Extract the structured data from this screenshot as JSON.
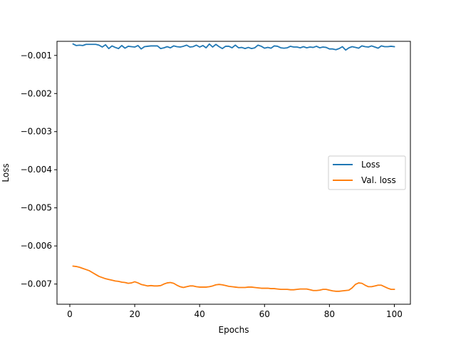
{
  "chart_data": {
    "type": "line",
    "title": "",
    "xlabel": "Epochs",
    "ylabel": "Loss",
    "xlim": [
      -3.95,
      104.95
    ],
    "ylim": [
      -0.00753,
      -0.00063
    ],
    "xticks": [
      0,
      20,
      40,
      60,
      80,
      100
    ],
    "xtick_labels": [
      "0",
      "20",
      "40",
      "60",
      "80",
      "100"
    ],
    "yticks": [
      -0.001,
      -0.002,
      -0.003,
      -0.004,
      -0.005,
      -0.006,
      -0.007
    ],
    "ytick_labels": [
      "−0.001",
      "−0.002",
      "−0.003",
      "−0.004",
      "−0.005",
      "−0.006",
      "−0.007"
    ],
    "grid": false,
    "legend_position": "center-right",
    "x": [
      1,
      2,
      3,
      4,
      5,
      6,
      7,
      8,
      9,
      10,
      11,
      12,
      13,
      14,
      15,
      16,
      17,
      18,
      19,
      20,
      21,
      22,
      23,
      24,
      25,
      26,
      27,
      28,
      29,
      30,
      31,
      32,
      33,
      34,
      35,
      36,
      37,
      38,
      39,
      40,
      41,
      42,
      43,
      44,
      45,
      46,
      47,
      48,
      49,
      50,
      51,
      52,
      53,
      54,
      55,
      56,
      57,
      58,
      59,
      60,
      61,
      62,
      63,
      64,
      65,
      66,
      67,
      68,
      69,
      70,
      71,
      72,
      73,
      74,
      75,
      76,
      77,
      78,
      79,
      80,
      81,
      82,
      83,
      84,
      85,
      86,
      87,
      88,
      89,
      90,
      91,
      92,
      93,
      94,
      95,
      96,
      97,
      98,
      99,
      100
    ],
    "series": [
      {
        "name": "Loss",
        "color": "#1f77b4",
        "values": [
          -0.0007,
          -0.00074,
          -0.00073,
          -0.00074,
          -0.00071,
          -0.00071,
          -0.00071,
          -0.00071,
          -0.00073,
          -0.00078,
          -0.00072,
          -0.00082,
          -0.00075,
          -0.00079,
          -0.00082,
          -0.00074,
          -0.00081,
          -0.00076,
          -0.00077,
          -0.00078,
          -0.00074,
          -0.00083,
          -0.00077,
          -0.00076,
          -0.00075,
          -0.00075,
          -0.00075,
          -0.00082,
          -0.0008,
          -0.00077,
          -0.0008,
          -0.00075,
          -0.00077,
          -0.00078,
          -0.00076,
          -0.00073,
          -0.00078,
          -0.00077,
          -0.00073,
          -0.00078,
          -0.00074,
          -0.0008,
          -0.0007,
          -0.00078,
          -0.00071,
          -0.00077,
          -0.00082,
          -0.00076,
          -0.00076,
          -0.0008,
          -0.00073,
          -0.0008,
          -0.00079,
          -0.00082,
          -0.00079,
          -0.00082,
          -0.0008,
          -0.00073,
          -0.00076,
          -0.00081,
          -0.00079,
          -0.00081,
          -0.00075,
          -0.00076,
          -0.0008,
          -0.00081,
          -0.0008,
          -0.00076,
          -0.00078,
          -0.00078,
          -0.0008,
          -0.00077,
          -0.0008,
          -0.00078,
          -0.00079,
          -0.00076,
          -0.0008,
          -0.00078,
          -0.00079,
          -0.00083,
          -0.00083,
          -0.00085,
          -0.00082,
          -0.00077,
          -0.00086,
          -0.0008,
          -0.00077,
          -0.00079,
          -0.00081,
          -0.00075,
          -0.00077,
          -0.00078,
          -0.00075,
          -0.00078,
          -0.00081,
          -0.00075,
          -0.00077,
          -0.00077,
          -0.00076,
          -0.00077
        ]
      },
      {
        "name": "Val. loss",
        "color": "#ff7f0e",
        "values": [
          -0.00653,
          -0.00654,
          -0.00656,
          -0.00659,
          -0.00662,
          -0.00665,
          -0.0067,
          -0.00675,
          -0.0068,
          -0.00683,
          -0.00686,
          -0.00688,
          -0.0069,
          -0.00692,
          -0.00693,
          -0.00695,
          -0.00696,
          -0.00698,
          -0.00697,
          -0.00694,
          -0.00697,
          -0.00701,
          -0.00703,
          -0.00705,
          -0.00704,
          -0.00705,
          -0.00705,
          -0.00704,
          -0.007,
          -0.00697,
          -0.00696,
          -0.00698,
          -0.00703,
          -0.00707,
          -0.00709,
          -0.00707,
          -0.00705,
          -0.00705,
          -0.00707,
          -0.00708,
          -0.00708,
          -0.00708,
          -0.00707,
          -0.00705,
          -0.00702,
          -0.00701,
          -0.00702,
          -0.00704,
          -0.00706,
          -0.00707,
          -0.00708,
          -0.00709,
          -0.00709,
          -0.00709,
          -0.00708,
          -0.00708,
          -0.00709,
          -0.0071,
          -0.00711,
          -0.00711,
          -0.00711,
          -0.00712,
          -0.00712,
          -0.00713,
          -0.00714,
          -0.00714,
          -0.00714,
          -0.00715,
          -0.00715,
          -0.00714,
          -0.00713,
          -0.00713,
          -0.00713,
          -0.00715,
          -0.00717,
          -0.00717,
          -0.00716,
          -0.00714,
          -0.00714,
          -0.00716,
          -0.00718,
          -0.00719,
          -0.00719,
          -0.00718,
          -0.00717,
          -0.00716,
          -0.0071,
          -0.00701,
          -0.00697,
          -0.00698,
          -0.00703,
          -0.00707,
          -0.00707,
          -0.00705,
          -0.00703,
          -0.00703,
          -0.00707,
          -0.00711,
          -0.00714,
          -0.00714
        ]
      }
    ]
  }
}
